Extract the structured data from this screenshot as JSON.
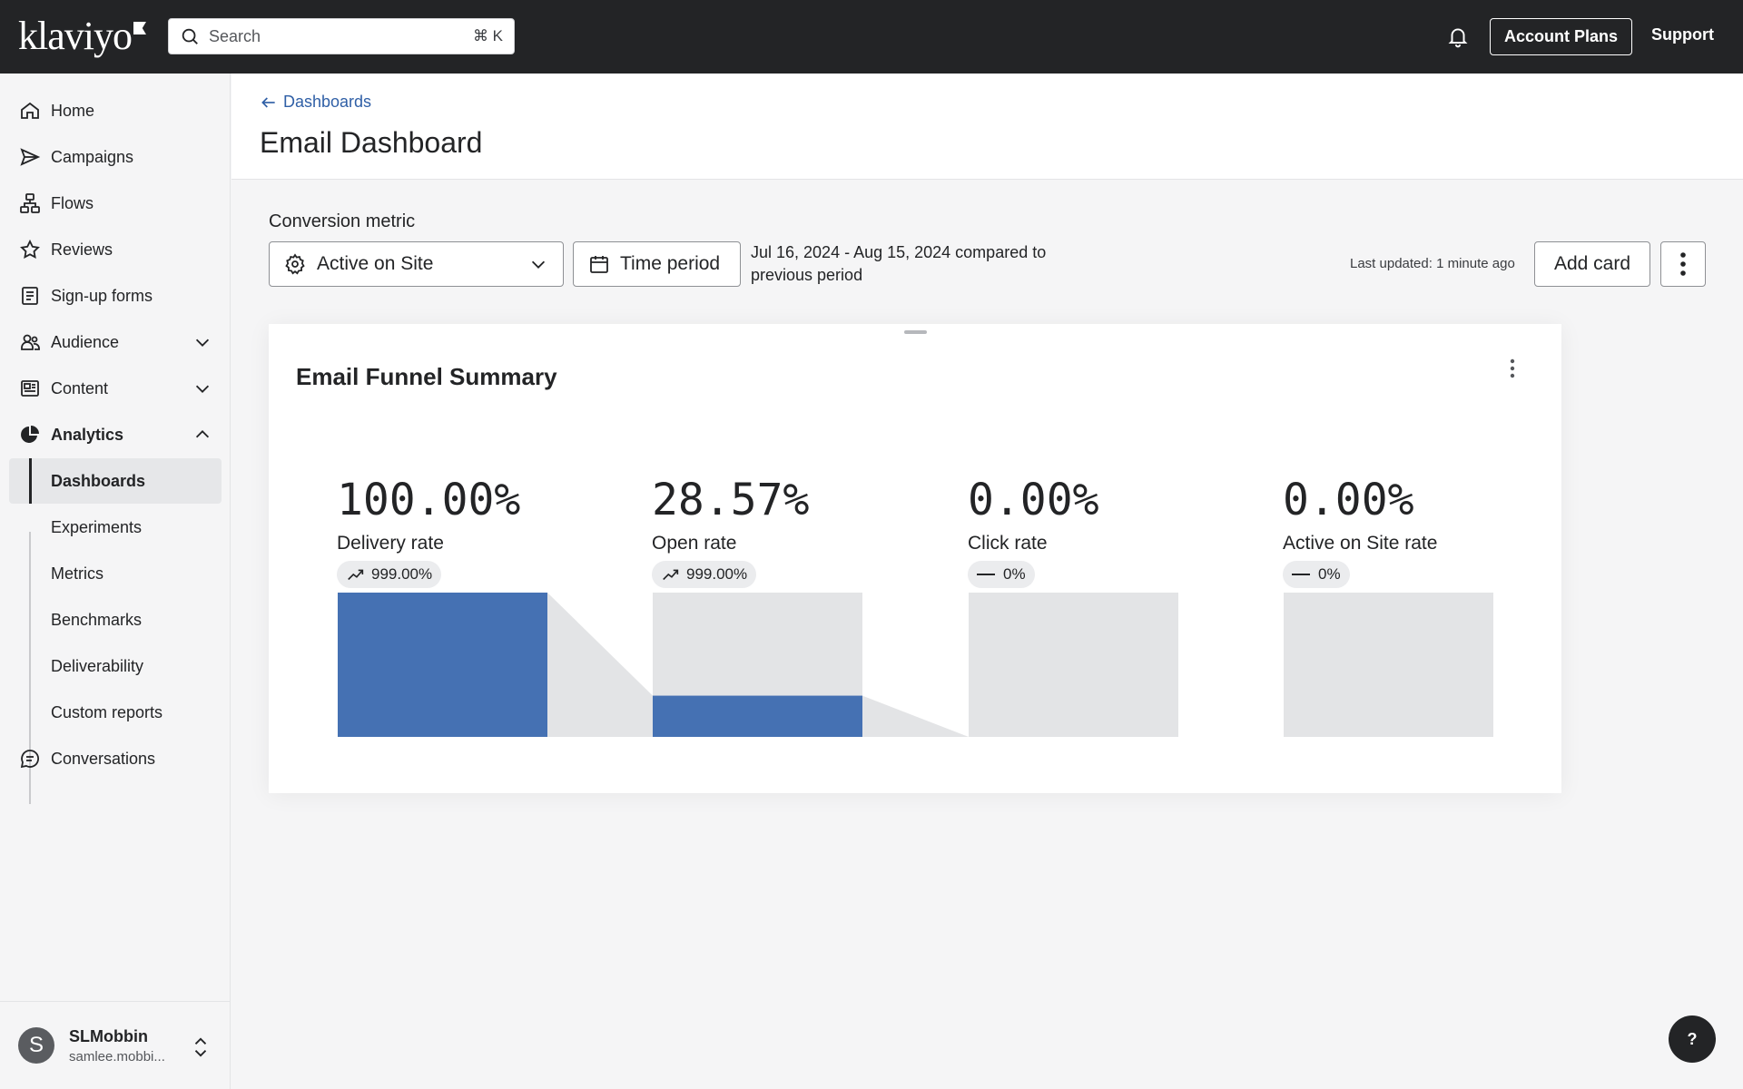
{
  "topbar": {
    "logo": "klaviyo",
    "search_placeholder": "Search",
    "search_shortcut": "⌘ K",
    "account_plans": "Account Plans",
    "support": "Support"
  },
  "sidebar": {
    "items": [
      {
        "label": "Home",
        "icon": "home-icon"
      },
      {
        "label": "Campaigns",
        "icon": "send-icon"
      },
      {
        "label": "Flows",
        "icon": "flow-icon"
      },
      {
        "label": "Reviews",
        "icon": "star-icon"
      },
      {
        "label": "Sign-up forms",
        "icon": "form-icon"
      },
      {
        "label": "Audience",
        "icon": "users-icon"
      },
      {
        "label": "Content",
        "icon": "content-icon"
      },
      {
        "label": "Analytics",
        "icon": "pie-chart-icon"
      },
      {
        "label": "Conversations",
        "icon": "chat-icon"
      }
    ],
    "analytics_sub": [
      {
        "label": "Dashboards"
      },
      {
        "label": "Experiments"
      },
      {
        "label": "Metrics"
      },
      {
        "label": "Benchmarks"
      },
      {
        "label": "Deliverability"
      },
      {
        "label": "Custom reports"
      }
    ],
    "user": {
      "initial": "S",
      "name": "SLMobbin",
      "email": "samlee.mobbi..."
    }
  },
  "header": {
    "breadcrumb": "Dashboards",
    "title": "Email Dashboard"
  },
  "controls": {
    "conversion_label": "Conversion metric",
    "conversion_value": "Active on Site",
    "time_period": "Time period",
    "range_text": "Jul 16, 2024 - Aug 15, 2024 compared to previous period",
    "last_updated": "Last updated: 1 minute ago",
    "add_card": "Add card"
  },
  "card": {
    "title": "Email Funnel Summary",
    "metrics": [
      {
        "value": "100.00%",
        "label": "Delivery rate",
        "change": "999.00%",
        "trend": "up",
        "fill": 1.0
      },
      {
        "value": "28.57%",
        "label": "Open rate",
        "change": "999.00%",
        "trend": "up",
        "fill": 0.2857
      },
      {
        "value": "0.00%",
        "label": "Click rate",
        "change": "0%",
        "trend": "flat",
        "fill": 0.0
      },
      {
        "value": "0.00%",
        "label": "Active on Site rate",
        "change": "0%",
        "trend": "flat",
        "fill": 0.0
      }
    ],
    "colors": {
      "fill": "#4571b3",
      "track": "#e3e4e6"
    }
  },
  "help": "?"
}
